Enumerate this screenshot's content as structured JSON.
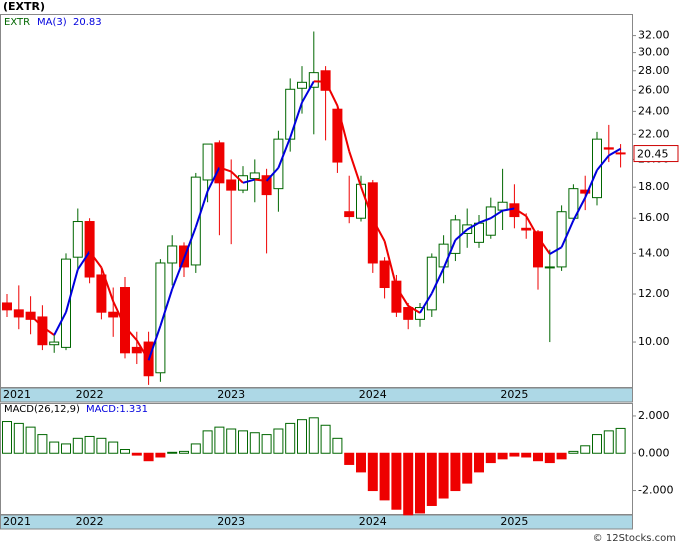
{
  "chart_data": [
    {
      "type": "candlestick",
      "title": "(EXTR)",
      "symbol": "EXTR",
      "ma_name": "MA(3)",
      "ma_value": 20.83,
      "last": 20.45,
      "categories": [
        "2021",
        null,
        null,
        null,
        null,
        null,
        null,
        "2022",
        null,
        null,
        null,
        null,
        null,
        null,
        null,
        null,
        null,
        null,
        null,
        "2023",
        null,
        null,
        null,
        null,
        null,
        null,
        null,
        null,
        null,
        null,
        null,
        "2024",
        null,
        null,
        null,
        null,
        null,
        null,
        null,
        null,
        null,
        null,
        null,
        "2025",
        null,
        null,
        null,
        null,
        null,
        null,
        null,
        null,
        null
      ],
      "open": [
        11.6,
        11.3,
        11.2,
        11.0,
        9.9,
        9.8,
        13.8,
        15.8,
        12.9,
        11.2,
        12.3,
        9.8,
        10.0,
        8.9,
        13.5,
        14.4,
        13.4,
        18.5,
        21.3,
        18.5,
        17.8,
        18.6,
        18.8,
        17.9,
        21.6,
        26.2,
        26.3,
        28.0,
        24.2,
        16.4,
        16.0,
        18.3,
        13.6,
        12.6,
        11.4,
        10.9,
        11.3,
        13.3,
        14.0,
        15.1,
        14.6,
        15.0,
        16.5,
        16.9,
        15.4,
        15.2,
        13.3,
        13.3,
        16.0,
        17.8,
        17.3,
        20.9,
        20.5
      ],
      "high": [
        12.0,
        12.4,
        11.9,
        11.5,
        10.3,
        14.0,
        16.6,
        16.0,
        13.2,
        12.3,
        12.8,
        10.4,
        10.4,
        13.7,
        15.0,
        14.6,
        19.0,
        21.2,
        21.5,
        20.0,
        19.5,
        20.0,
        19.3,
        22.3,
        27.2,
        28.5,
        32.5,
        28.5,
        24.6,
        18.8,
        18.8,
        18.5,
        13.8,
        12.9,
        11.6,
        11.6,
        14.0,
        15.0,
        16.2,
        16.6,
        16.2,
        17.3,
        19.3,
        18.2,
        16.3,
        15.3,
        14.2,
        16.8,
        18.2,
        18.8,
        22.2,
        22.8,
        21.2
      ],
      "low": [
        11.0,
        10.5,
        10.3,
        9.7,
        9.6,
        9.7,
        13.2,
        12.5,
        10.9,
        10.2,
        9.4,
        9.2,
        8.5,
        8.6,
        12.4,
        12.8,
        13.0,
        17.0,
        15.0,
        14.5,
        17.6,
        17.0,
        14.0,
        16.4,
        20.6,
        23.8,
        22.0,
        21.5,
        19.0,
        15.7,
        15.8,
        13.0,
        11.8,
        11.0,
        10.5,
        10.6,
        11.0,
        12.5,
        13.6,
        14.3,
        14.3,
        14.8,
        15.3,
        15.4,
        14.8,
        12.2,
        10.0,
        13.1,
        15.9,
        16.5,
        16.8,
        19.8,
        19.4
      ],
      "close": [
        11.3,
        11.0,
        10.9,
        9.9,
        10.0,
        13.7,
        15.8,
        12.8,
        11.2,
        11.0,
        9.6,
        9.6,
        8.8,
        13.5,
        14.4,
        13.3,
        18.7,
        21.2,
        18.3,
        17.8,
        18.8,
        19.0,
        17.5,
        21.6,
        26.1,
        26.8,
        27.8,
        26.0,
        19.8,
        16.1,
        18.2,
        13.5,
        12.3,
        11.2,
        10.9,
        11.4,
        13.8,
        14.5,
        15.9,
        15.6,
        15.7,
        16.7,
        17.0,
        16.1,
        15.3,
        13.3,
        13.3,
        16.4,
        17.9,
        17.6,
        21.6,
        20.8,
        20.45
      ],
      "ma": [
        null,
        null,
        11.07,
        10.6,
        10.27,
        11.2,
        13.17,
        14.1,
        13.27,
        11.67,
        10.6,
        10.07,
        9.33,
        10.63,
        12.23,
        13.73,
        15.47,
        17.73,
        19.4,
        19.1,
        18.3,
        18.53,
        18.43,
        19.37,
        21.73,
        24.83,
        26.9,
        26.87,
        24.53,
        20.63,
        18.03,
        15.93,
        14.67,
        12.33,
        11.47,
        11.17,
        12.03,
        13.23,
        14.73,
        15.33,
        15.73,
        16.0,
        16.47,
        16.6,
        16.13,
        14.9,
        13.97,
        14.33,
        15.87,
        17.3,
        19.2,
        20.3,
        20.83
      ],
      "log_scale": true,
      "ylim": [
        8.4,
        34.6
      ],
      "yticks": [
        {
          "value": 10,
          "label": "10.00"
        },
        {
          "value": 12,
          "label": "12.00"
        },
        {
          "value": 14,
          "label": "14.00"
        },
        {
          "value": 16,
          "label": "16.00"
        },
        {
          "value": 18,
          "label": "18.00"
        },
        {
          "value": 20,
          "label": "20.00"
        },
        {
          "value": 22,
          "label": "22.00"
        },
        {
          "value": 24,
          "label": "24.00"
        },
        {
          "value": 26,
          "label": "26.00"
        },
        {
          "value": 28,
          "label": "28.00"
        },
        {
          "value": 30,
          "label": "30.00"
        },
        {
          "value": 32,
          "label": "32.00"
        }
      ],
      "up_color": "#006600",
      "down_color": "#ee0000",
      "ma_up_color": "#0000dd",
      "ma_down_color": "#ee0000"
    },
    {
      "type": "bar",
      "title": "MACD(26,12,9)",
      "value_text": "MACD:1.331",
      "categories": [
        "2021",
        null,
        null,
        null,
        null,
        null,
        null,
        "2022",
        null,
        null,
        null,
        null,
        null,
        null,
        null,
        null,
        null,
        null,
        null,
        "2023",
        null,
        null,
        null,
        null,
        null,
        null,
        null,
        null,
        null,
        null,
        null,
        "2024",
        null,
        null,
        null,
        null,
        null,
        null,
        null,
        null,
        null,
        null,
        null,
        "2025",
        null,
        null,
        null,
        null,
        null,
        null,
        null,
        null,
        null
      ],
      "values": [
        1.7,
        1.6,
        1.4,
        1.0,
        0.6,
        0.5,
        0.8,
        0.9,
        0.8,
        0.6,
        0.2,
        -0.1,
        -0.4,
        -0.2,
        0.05,
        0.1,
        0.5,
        1.2,
        1.4,
        1.3,
        1.2,
        1.1,
        1.0,
        1.3,
        1.6,
        1.8,
        1.9,
        1.5,
        0.8,
        -0.6,
        -1.0,
        -2.0,
        -2.5,
        -3.0,
        -3.3,
        -3.2,
        -2.8,
        -2.4,
        -2.0,
        -1.6,
        -1.0,
        -0.5,
        -0.3,
        -0.15,
        -0.2,
        -0.4,
        -0.5,
        -0.3,
        0.1,
        0.4,
        1.0,
        1.2,
        1.331
      ],
      "ylim": [
        -3.31,
        2.64
      ],
      "yticks": [
        {
          "value": 2,
          "label": "2.000"
        },
        {
          "value": 0,
          "label": "0.000"
        },
        {
          "value": -2,
          "label": "-2.000"
        }
      ],
      "up_color": "#006600",
      "down_color": "#ee0000"
    }
  ],
  "footer": "© 12Stocks.com"
}
